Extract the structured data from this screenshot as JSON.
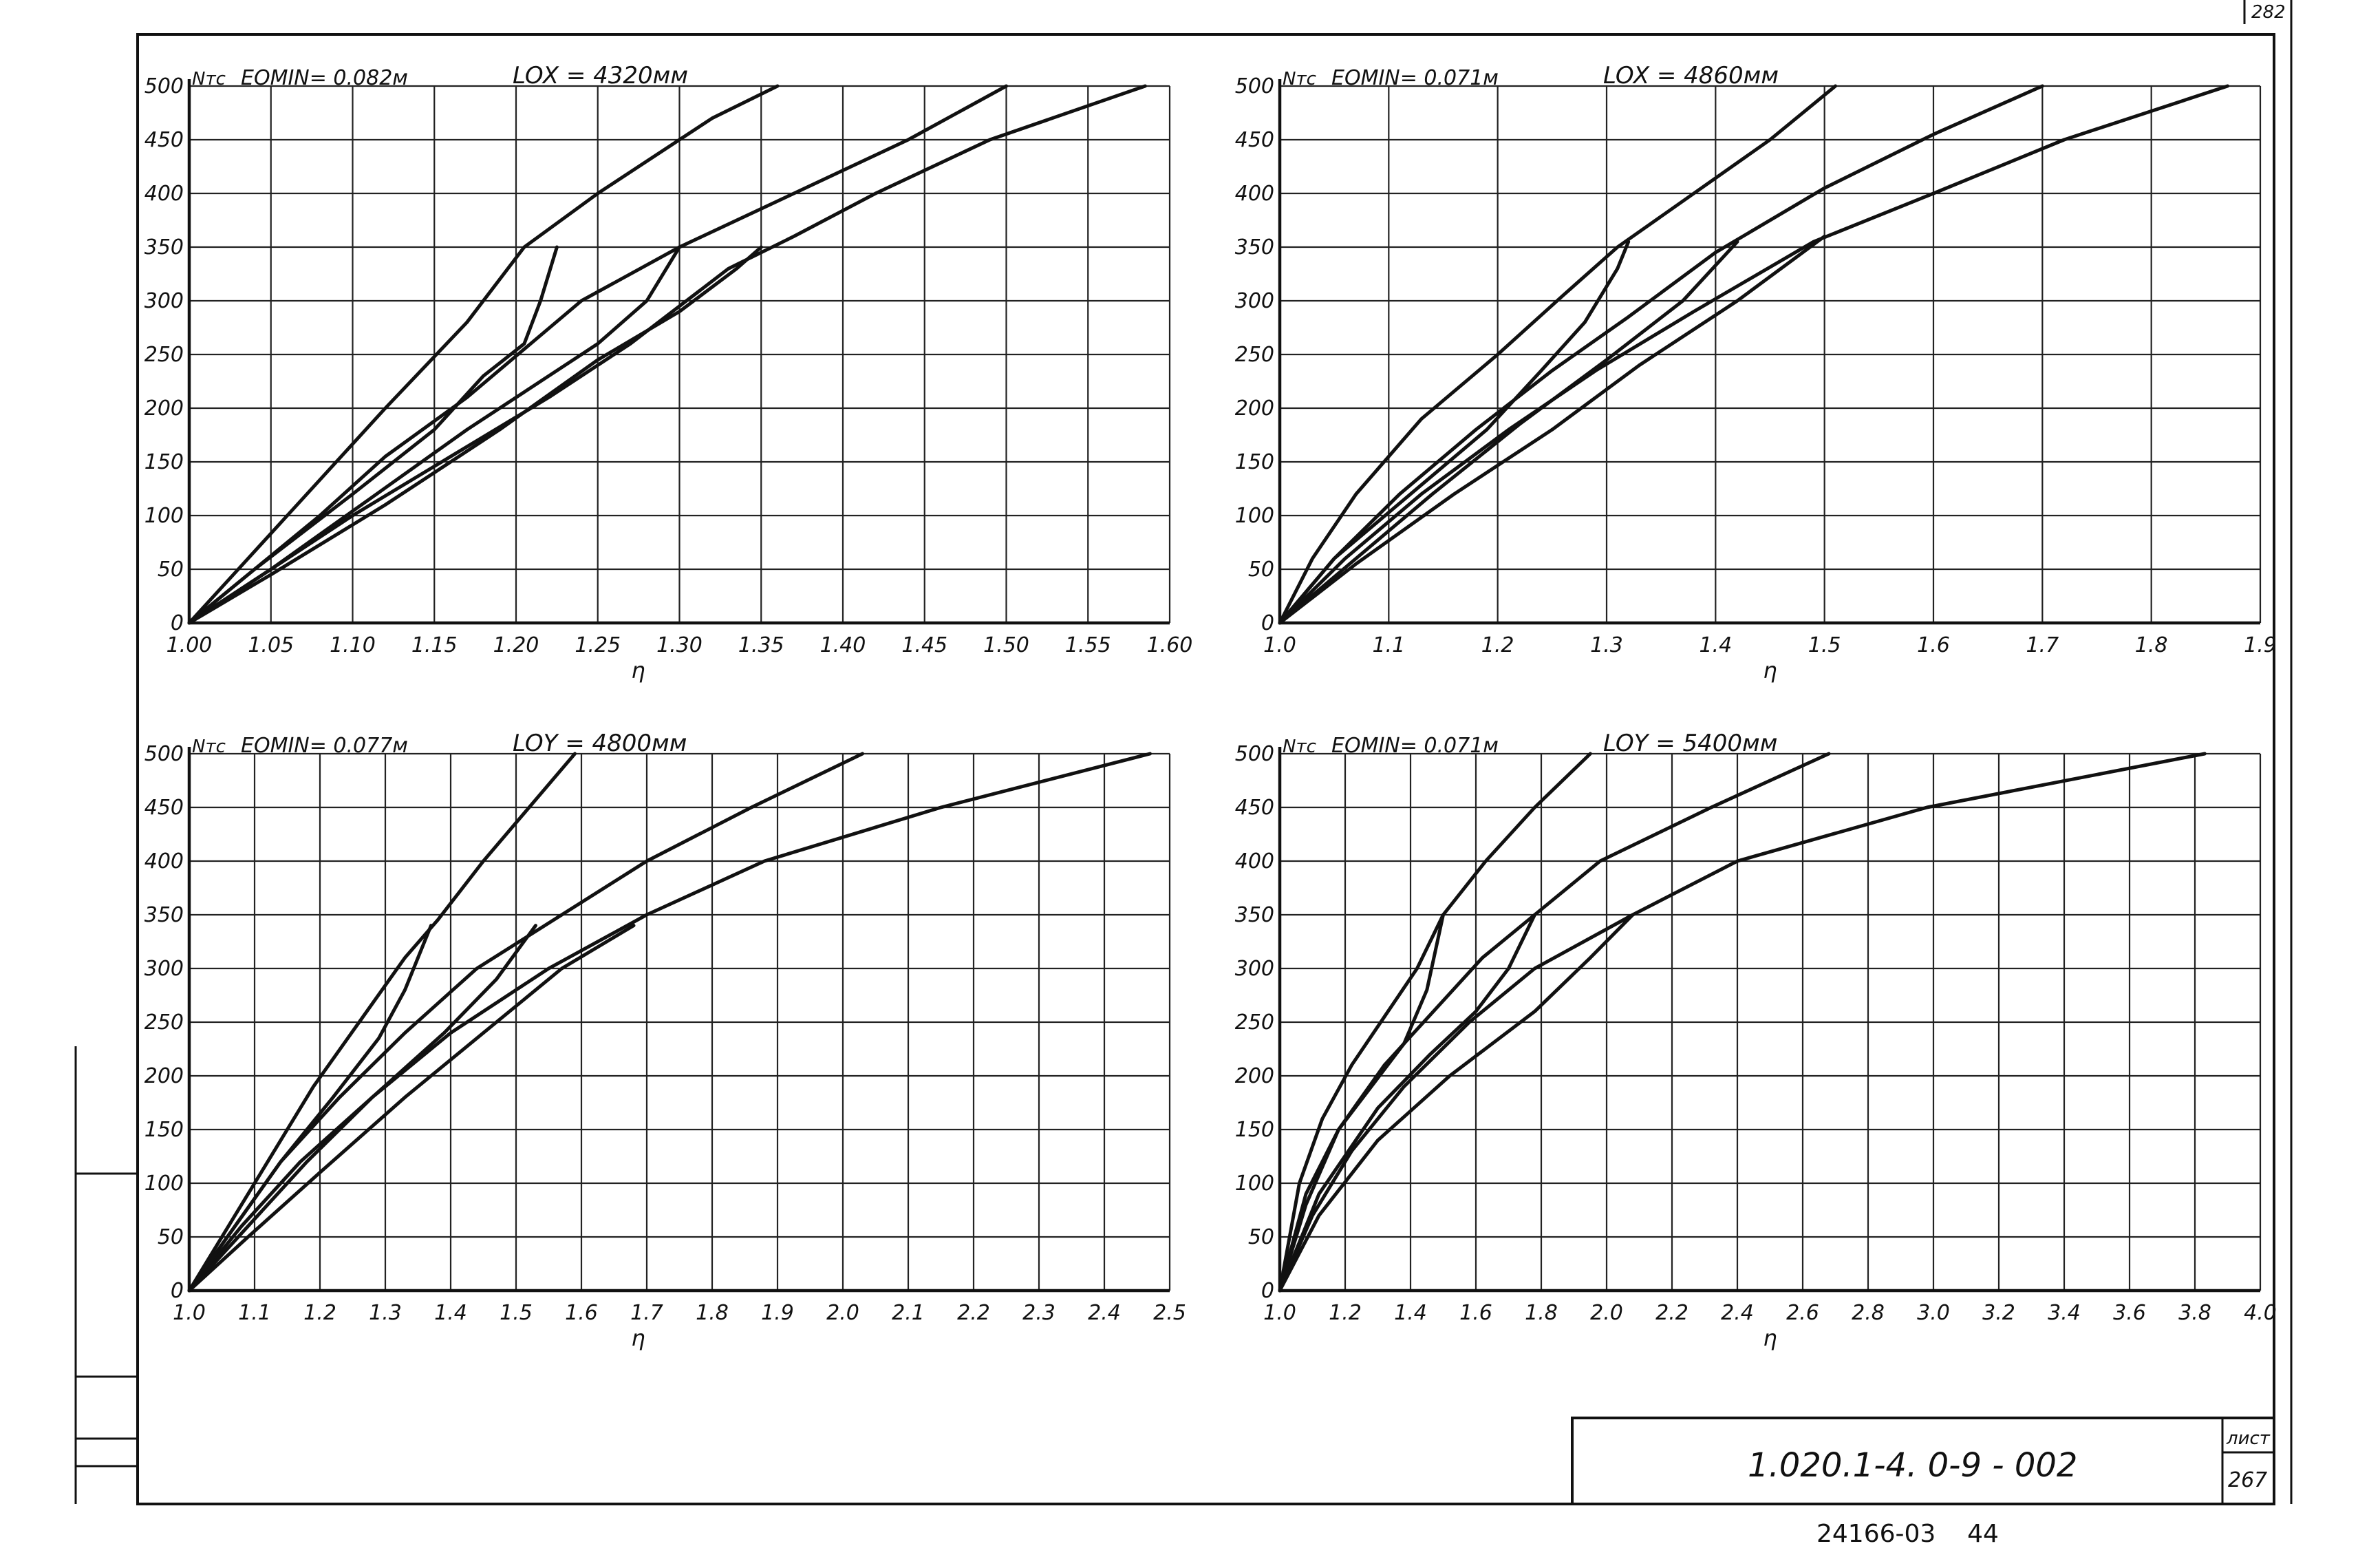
{
  "corner_number": "282",
  "stamp": {
    "code": "1.020.1-4. 0-9 - 002",
    "sheet_label": "лист",
    "sheet_number": "267"
  },
  "bottom_numbers": "24166-03    44",
  "chart_data": [
    {
      "type": "line",
      "y_unit": "Nтс",
      "eo_label": "EOMIN= 0.082м",
      "length_label": "LOX = 4320мм",
      "xlabel": "η",
      "xlim": [
        1.0,
        1.6
      ],
      "ylim": [
        0,
        500
      ],
      "x_ticks": [
        "1.00",
        "1.05",
        "1.10",
        "1.15",
        "1.20",
        "1.25",
        "1.30",
        "1.35",
        "1.40",
        "1.45",
        "1.50",
        "1.55",
        "1.60"
      ],
      "y_ticks": [
        "0",
        "50",
        "100",
        "150",
        "200",
        "250",
        "300",
        "350",
        "400",
        "450",
        "500"
      ],
      "grid": true,
      "series": [
        {
          "points": [
            [
              1.0,
              0
            ],
            [
              1.03,
              50
            ],
            [
              1.06,
              100
            ],
            [
              1.12,
              200
            ],
            [
              1.17,
              280
            ],
            [
              1.205,
              350
            ],
            [
              1.25,
              400
            ],
            [
              1.32,
              470
            ],
            [
              1.36,
              500
            ]
          ]
        },
        {
          "points": [
            [
              1.0,
              0
            ],
            [
              1.04,
              50
            ],
            [
              1.08,
              100
            ],
            [
              1.12,
              155
            ],
            [
              1.17,
              210
            ],
            [
              1.205,
              255
            ],
            [
              1.24,
              300
            ],
            [
              1.3,
              350
            ],
            [
              1.37,
              400
            ],
            [
              1.44,
              450
            ],
            [
              1.5,
              500
            ]
          ]
        },
        {
          "points": [
            [
              1.0,
              0
            ],
            [
              1.05,
              50
            ],
            [
              1.1,
              100
            ],
            [
              1.16,
              155
            ],
            [
              1.22,
              210
            ],
            [
              1.27,
              260
            ],
            [
              1.33,
              330
            ],
            [
              1.37,
              360
            ],
            [
              1.42,
              400
            ],
            [
              1.49,
              450
            ],
            [
              1.585,
              500
            ]
          ]
        },
        {
          "points": [
            [
              1.0,
              0
            ],
            [
              1.04,
              50
            ],
            [
              1.1,
              120
            ],
            [
              1.15,
              180
            ],
            [
              1.18,
              230
            ],
            [
              1.205,
              260
            ],
            [
              1.215,
              300
            ],
            [
              1.225,
              350
            ]
          ]
        },
        {
          "points": [
            [
              1.0,
              0
            ],
            [
              1.05,
              50
            ],
            [
              1.11,
              115
            ],
            [
              1.17,
              180
            ],
            [
              1.22,
              230
            ],
            [
              1.25,
              260
            ],
            [
              1.28,
              300
            ],
            [
              1.3,
              350
            ]
          ]
        },
        {
          "points": [
            [
              1.0,
              0
            ],
            [
              1.05,
              45
            ],
            [
              1.12,
              110
            ],
            [
              1.19,
              180
            ],
            [
              1.25,
              245
            ],
            [
              1.3,
              290
            ],
            [
              1.335,
              330
            ],
            [
              1.35,
              350
            ]
          ]
        }
      ]
    },
    {
      "type": "line",
      "y_unit": "Nтс",
      "eo_label": "EOMIN= 0.071м",
      "length_label": "LOX = 4860мм",
      "xlabel": "η",
      "xlim": [
        1.0,
        1.9
      ],
      "ylim": [
        0,
        500
      ],
      "x_ticks": [
        "1.0",
        "1.1",
        "1.2",
        "1.3",
        "1.4",
        "1.5",
        "1.6",
        "1.7",
        "1.8",
        "1.9"
      ],
      "y_ticks": [
        "0",
        "50",
        "100",
        "150",
        "200",
        "250",
        "300",
        "350",
        "400",
        "450",
        "500"
      ],
      "grid": true,
      "series": [
        {
          "points": [
            [
              1.0,
              0
            ],
            [
              1.03,
              60
            ],
            [
              1.07,
              120
            ],
            [
              1.13,
              190
            ],
            [
              1.2,
              250
            ],
            [
              1.26,
              305
            ],
            [
              1.31,
              350
            ],
            [
              1.38,
              400
            ],
            [
              1.45,
              450
            ],
            [
              1.51,
              500
            ]
          ]
        },
        {
          "points": [
            [
              1.0,
              0
            ],
            [
              1.05,
              60
            ],
            [
              1.11,
              120
            ],
            [
              1.18,
              180
            ],
            [
              1.25,
              235
            ],
            [
              1.32,
              285
            ],
            [
              1.4,
              345
            ],
            [
              1.5,
              405
            ],
            [
              1.6,
              455
            ],
            [
              1.7,
              500
            ]
          ]
        },
        {
          "points": [
            [
              1.0,
              0
            ],
            [
              1.06,
              60
            ],
            [
              1.13,
              120
            ],
            [
              1.21,
              180
            ],
            [
              1.29,
              235
            ],
            [
              1.38,
              290
            ],
            [
              1.49,
              355
            ],
            [
              1.6,
              400
            ],
            [
              1.72,
              450
            ],
            [
              1.87,
              500
            ]
          ]
        },
        {
          "points": [
            [
              1.0,
              0
            ],
            [
              1.05,
              60
            ],
            [
              1.12,
              120
            ],
            [
              1.19,
              180
            ],
            [
              1.24,
              235
            ],
            [
              1.28,
              280
            ],
            [
              1.31,
              330
            ],
            [
              1.32,
              355
            ]
          ]
        },
        {
          "points": [
            [
              1.0,
              0
            ],
            [
              1.07,
              60
            ],
            [
              1.14,
              120
            ],
            [
              1.22,
              185
            ],
            [
              1.3,
              245
            ],
            [
              1.37,
              300
            ],
            [
              1.42,
              355
            ]
          ]
        },
        {
          "points": [
            [
              1.0,
              0
            ],
            [
              1.07,
              55
            ],
            [
              1.16,
              120
            ],
            [
              1.25,
              180
            ],
            [
              1.33,
              240
            ],
            [
              1.42,
              300
            ],
            [
              1.5,
              360
            ]
          ]
        }
      ]
    },
    {
      "type": "line",
      "y_unit": "Nтс",
      "eo_label": "EOMIN= 0.077м",
      "length_label": "LOY = 4800мм",
      "xlabel": "η",
      "xlim": [
        1.0,
        2.5
      ],
      "ylim": [
        0,
        500
      ],
      "x_ticks": [
        "1.0",
        "1.1",
        "1.2",
        "1.3",
        "1.4",
        "1.5",
        "1.6",
        "1.7",
        "1.8",
        "1.9",
        "2.0",
        "2.1",
        "2.2",
        "2.3",
        "2.4",
        "2.5"
      ],
      "y_ticks": [
        "0",
        "50",
        "100",
        "150",
        "200",
        "250",
        "300",
        "350",
        "400",
        "450",
        "500"
      ],
      "grid": true,
      "series": [
        {
          "points": [
            [
              1.0,
              0
            ],
            [
              1.06,
              60
            ],
            [
              1.12,
              120
            ],
            [
              1.19,
              190
            ],
            [
              1.26,
              250
            ],
            [
              1.33,
              310
            ],
            [
              1.38,
              345
            ],
            [
              1.45,
              400
            ],
            [
              1.52,
              450
            ],
            [
              1.59,
              500
            ]
          ]
        },
        {
          "points": [
            [
              1.0,
              0
            ],
            [
              1.07,
              60
            ],
            [
              1.14,
              120
            ],
            [
              1.23,
              180
            ],
            [
              1.33,
              240
            ],
            [
              1.44,
              300
            ],
            [
              1.57,
              350
            ],
            [
              1.7,
              400
            ],
            [
              1.86,
              450
            ],
            [
              2.03,
              500
            ]
          ]
        },
        {
          "points": [
            [
              1.0,
              0
            ],
            [
              1.08,
              60
            ],
            [
              1.17,
              120
            ],
            [
              1.28,
              180
            ],
            [
              1.4,
              240
            ],
            [
              1.55,
              300
            ],
            [
              1.7,
              350
            ],
            [
              1.88,
              400
            ],
            [
              2.15,
              450
            ],
            [
              2.47,
              500
            ]
          ]
        },
        {
          "points": [
            [
              1.0,
              0
            ],
            [
              1.07,
              60
            ],
            [
              1.14,
              120
            ],
            [
              1.22,
              180
            ],
            [
              1.29,
              235
            ],
            [
              1.33,
              280
            ],
            [
              1.37,
              340
            ]
          ]
        },
        {
          "points": [
            [
              1.0,
              0
            ],
            [
              1.09,
              60
            ],
            [
              1.18,
              120
            ],
            [
              1.28,
              180
            ],
            [
              1.39,
              240
            ],
            [
              1.47,
              290
            ],
            [
              1.53,
              340
            ]
          ]
        },
        {
          "points": [
            [
              1.0,
              0
            ],
            [
              1.09,
              50
            ],
            [
              1.2,
              110
            ],
            [
              1.33,
              180
            ],
            [
              1.45,
              240
            ],
            [
              1.57,
              300
            ],
            [
              1.68,
              340
            ]
          ]
        }
      ]
    },
    {
      "type": "line",
      "y_unit": "Nтс",
      "eo_label": "EOMIN= 0.071м",
      "length_label": "LOY = 5400мм",
      "xlabel": "η",
      "xlim": [
        1.0,
        4.0
      ],
      "ylim": [
        0,
        500
      ],
      "x_ticks": [
        "1.0",
        "1.2",
        "1.4",
        "1.6",
        "1.8",
        "2.0",
        "2.2",
        "2.4",
        "2.6",
        "2.8",
        "3.0",
        "3.2",
        "3.4",
        "3.6",
        "3.8",
        "4.0"
      ],
      "y_ticks": [
        "0",
        "50",
        "100",
        "150",
        "200",
        "250",
        "300",
        "350",
        "400",
        "450",
        "500"
      ],
      "grid": true,
      "series": [
        {
          "points": [
            [
              1.0,
              0
            ],
            [
              1.06,
              100
            ],
            [
              1.13,
              160
            ],
            [
              1.22,
              210
            ],
            [
              1.32,
              255
            ],
            [
              1.42,
              300
            ],
            [
              1.5,
              350
            ],
            [
              1.63,
              400
            ],
            [
              1.78,
              450
            ],
            [
              1.95,
              500
            ]
          ]
        },
        {
          "points": [
            [
              1.0,
              0
            ],
            [
              1.08,
              90
            ],
            [
              1.18,
              150
            ],
            [
              1.32,
              210
            ],
            [
              1.5,
              270
            ],
            [
              1.62,
              310
            ],
            [
              1.78,
              350
            ],
            [
              1.98,
              400
            ],
            [
              2.32,
              450
            ],
            [
              2.68,
              500
            ]
          ]
        },
        {
          "points": [
            [
              1.0,
              0
            ],
            [
              1.1,
              70
            ],
            [
              1.22,
              130
            ],
            [
              1.38,
              190
            ],
            [
              1.58,
              250
            ],
            [
              1.78,
              300
            ],
            [
              2.08,
              350
            ],
            [
              2.4,
              400
            ],
            [
              2.98,
              450
            ],
            [
              3.83,
              500
            ]
          ]
        },
        {
          "points": [
            [
              1.0,
              0
            ],
            [
              1.08,
              80
            ],
            [
              1.18,
              150
            ],
            [
              1.28,
              190
            ],
            [
              1.38,
              230
            ],
            [
              1.45,
              280
            ],
            [
              1.5,
              350
            ]
          ]
        },
        {
          "points": [
            [
              1.0,
              0
            ],
            [
              1.12,
              90
            ],
            [
              1.3,
              170
            ],
            [
              1.46,
              220
            ],
            [
              1.6,
              260
            ],
            [
              1.7,
              300
            ],
            [
              1.78,
              350
            ]
          ]
        },
        {
          "points": [
            [
              1.0,
              0
            ],
            [
              1.12,
              70
            ],
            [
              1.3,
              140
            ],
            [
              1.52,
              200
            ],
            [
              1.78,
              260
            ],
            [
              1.95,
              310
            ],
            [
              2.08,
              350
            ]
          ]
        }
      ]
    }
  ]
}
